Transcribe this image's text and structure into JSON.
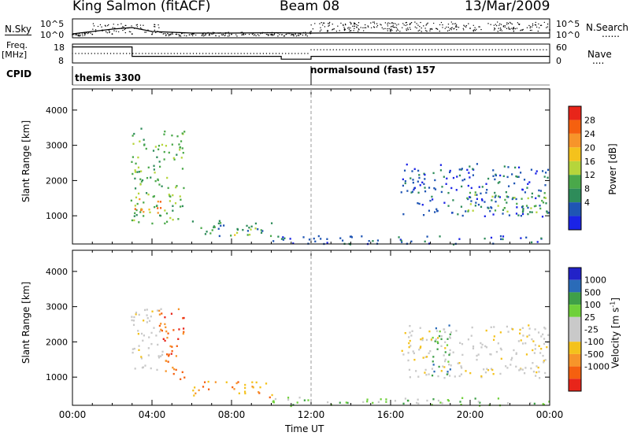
{
  "header": {
    "station": "King Salmon (fitACF)",
    "beam": "Beam 08",
    "date": "13/Mar/2009"
  },
  "left_labels": {
    "nsky": "N.Sky",
    "freq_top": "Freq.",
    "freq_bottom": "[MHz]",
    "cpid": "CPID"
  },
  "right_labels": {
    "nsearch": "N.Search",
    "nsearch_line": "......",
    "nave": "Nave",
    "nave_line": "...."
  },
  "cpid": {
    "program_1": "themis 3300",
    "program_2": "normalsound (fast) 157",
    "change_time_hours": 12
  },
  "colors": {
    "power": [
      "#1a23e6",
      "#1f55b4",
      "#2e8c5a",
      "#4aa84a",
      "#b6d53b",
      "#f4c21c",
      "#f7952a",
      "#f5600f",
      "#e8251a"
    ],
    "velocity": [
      "#e8251a",
      "#f5600f",
      "#f7952a",
      "#f4c21c",
      "#c9c9c9",
      "#c9c9c9",
      "#6fd03a",
      "#3fa048",
      "#2a6bb8",
      "#2222c8"
    ]
  },
  "chart_data": [
    {
      "type": "line",
      "panel": "noise",
      "y_ticks_left": [
        "10^5",
        "10^0"
      ],
      "y_ticks_right": [
        "10^5",
        "10^0"
      ],
      "x": [
        0,
        1,
        2,
        3,
        4,
        6,
        8,
        10,
        12,
        14,
        16,
        18,
        20,
        22,
        24
      ],
      "series": [
        {
          "values": [
            0.15,
            0.3,
            0.45,
            0.55,
            0.3,
            0.2,
            0.2,
            0.22,
            0.2,
            0.22,
            0.2,
            0.2,
            0.2,
            0.2,
            0.2
          ]
        },
        {
          "values": [
            0.1,
            0.12,
            0.14,
            0.14,
            0.12,
            0.12,
            0.12,
            0.12,
            0.3,
            0.35,
            0.4,
            0.45,
            0.5,
            0.45,
            0.4
          ]
        }
      ]
    },
    {
      "type": "line",
      "panel": "frequency",
      "y_ticks_left": [
        "18",
        "8"
      ],
      "y_ticks_right": [
        "60",
        "0"
      ],
      "series": [
        {
          "x": [
            0,
            3,
            3,
            10.5,
            10.5,
            12,
            12,
            24
          ],
          "values": [
            0.85,
            0.85,
            0.35,
            0.35,
            0.2,
            0.2,
            0.35,
            0.35
          ]
        },
        {
          "x": [
            0,
            12,
            12,
            24
          ],
          "values": [
            0.5,
            0.5,
            0.7,
            0.7
          ]
        }
      ]
    },
    {
      "type": "heatmap",
      "panel": "power",
      "ylabel": "Slant Range [km]",
      "colorbar_label": "Power [dB]",
      "colorbar_ticks": [
        "28",
        "24",
        "20",
        "16",
        "12",
        "8",
        "4"
      ],
      "ylim": [
        200,
        4600
      ],
      "y_ticks": [
        1000,
        2000,
        3000,
        4000
      ],
      "x_ticks": [
        "00:00",
        "04:00",
        "08:00",
        "12:00",
        "16:00",
        "20:00",
        "00:00"
      ],
      "regions": [
        {
          "t0": 2.9,
          "t1": 5.6,
          "r0": 800,
          "r1": 3500,
          "level": 3
        },
        {
          "t0": 3.0,
          "t1": 4.7,
          "r0": 1100,
          "r1": 1500,
          "level": 6
        },
        {
          "t0": 6.0,
          "t1": 10.0,
          "r0": 450,
          "r1": 900,
          "level": 2
        },
        {
          "t0": 7.5,
          "t1": 9.2,
          "r0": 450,
          "r1": 700,
          "level": 4
        },
        {
          "t0": 10.0,
          "t1": 24.0,
          "r0": 200,
          "r1": 450,
          "level": 1
        },
        {
          "t0": 16.5,
          "t1": 23.9,
          "r0": 1000,
          "r1": 2500,
          "level": 1
        },
        {
          "t0": 19.5,
          "t1": 23.9,
          "r0": 1100,
          "r1": 1700,
          "level": 3
        }
      ]
    },
    {
      "type": "heatmap",
      "panel": "velocity",
      "ylabel": "Slant Range [km]",
      "colorbar_label": "Velocity [m s^-1]",
      "colorbar_ticks": [
        "1000",
        "500",
        "100",
        "25",
        "-25",
        "-100",
        "-500",
        "-1000"
      ],
      "ylim": [
        200,
        4600
      ],
      "y_ticks": [
        1000,
        2000,
        3000,
        4000
      ],
      "x_ticks": [
        "00:00",
        "04:00",
        "08:00",
        "12:00",
        "16:00",
        "20:00",
        "00:00"
      ],
      "xlabel": "Time UT",
      "regions": [
        {
          "t0": 2.9,
          "t1": 4.5,
          "r0": 1100,
          "r1": 3000,
          "level": 4
        },
        {
          "t0": 4.3,
          "t1": 5.6,
          "r0": 900,
          "r1": 3000,
          "level": 1
        },
        {
          "t0": 6.0,
          "t1": 10.0,
          "r0": 450,
          "r1": 900,
          "level": 2
        },
        {
          "t0": 10.0,
          "t1": 24.0,
          "r0": 200,
          "r1": 450,
          "level": 6
        },
        {
          "t0": 16.5,
          "t1": 23.9,
          "r0": 1000,
          "r1": 2500,
          "level": 4
        },
        {
          "t0": 18.0,
          "t1": 19.0,
          "r0": 1000,
          "r1": 2500,
          "level": 7
        }
      ]
    }
  ]
}
